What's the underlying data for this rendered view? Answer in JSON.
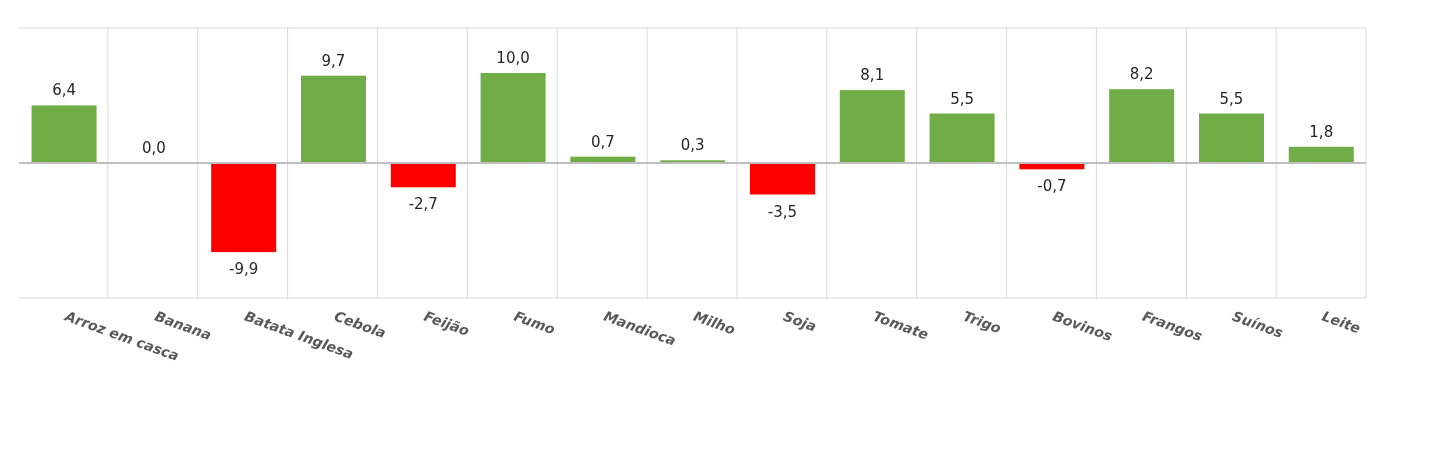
{
  "chart_data": {
    "type": "bar",
    "categories": [
      "Arroz em casca",
      "Banana",
      "Batata  Inglesa",
      "Cebola",
      "Feijão",
      "Fumo",
      "Mandioca",
      "Milho",
      "Soja",
      "Tomate",
      "Trigo",
      "Bovinos",
      "Frangos",
      "Suínos",
      "Leite"
    ],
    "values": [
      6.4,
      0.0,
      -9.9,
      9.7,
      -2.7,
      10.0,
      0.7,
      0.3,
      -3.5,
      8.1,
      5.5,
      -0.7,
      8.2,
      5.5,
      1.8
    ],
    "colors": [
      "#70ad47",
      "#70ad47",
      "#ff0000",
      "#70ad47",
      "#ff0000",
      "#70ad47",
      "#70ad47",
      "#70ad47",
      "#ff0000",
      "#70ad47",
      "#70ad47",
      "#ff0000",
      "#70ad47",
      "#70ad47",
      "#70ad47"
    ],
    "value_labels": [
      "6,4",
      "0,0",
      "-9,9",
      "9,7",
      "-2,7",
      "10,0",
      "0,7",
      "0,3",
      "-3,5",
      "8,1",
      "5,5",
      "-0,7",
      "8,2",
      "5,5",
      "1,8"
    ],
    "ylim": [
      -15,
      15
    ],
    "tick_labels": "x",
    "grid": true
  }
}
